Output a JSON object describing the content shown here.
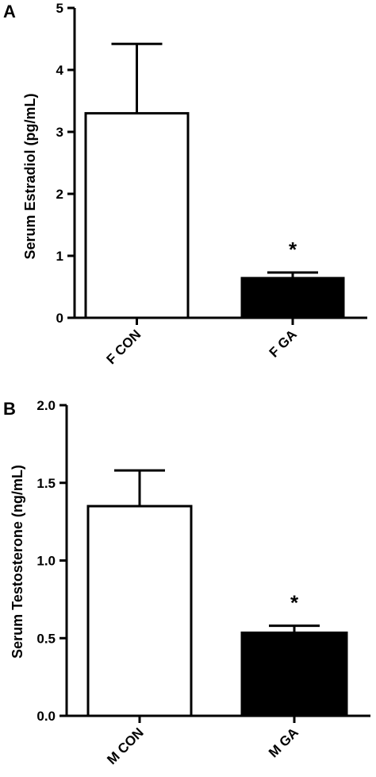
{
  "chart_data": [
    {
      "panel": "A",
      "type": "bar",
      "categories": [
        "F CON",
        "F GA"
      ],
      "values": [
        3.3,
        0.64
      ],
      "errors": [
        1.12,
        0.09
      ],
      "bar_colors": [
        "#ffffff",
        "#000000"
      ],
      "significance": [
        "",
        "*"
      ],
      "ylabel": "Serum Estradiol (pg/mL)",
      "ylim": [
        0,
        5
      ],
      "yticks": [
        "0",
        "1",
        "2",
        "3",
        "4",
        "5"
      ],
      "ytick_values": [
        0,
        1,
        2,
        3,
        4,
        5
      ]
    },
    {
      "panel": "B",
      "type": "bar",
      "categories": [
        "M CON",
        "M GA"
      ],
      "values": [
        1.35,
        0.535
      ],
      "errors": [
        0.23,
        0.045
      ],
      "bar_colors": [
        "#ffffff",
        "#000000"
      ],
      "significance": [
        "",
        "*"
      ],
      "ylabel": "Serum Testosterone (ng/mL)",
      "ylim": [
        0,
        2.0
      ],
      "yticks": [
        "0.0",
        "0.5",
        "1.0",
        "1.5",
        "2.0"
      ],
      "ytick_values": [
        0,
        0.5,
        1.0,
        1.5,
        2.0
      ]
    }
  ]
}
